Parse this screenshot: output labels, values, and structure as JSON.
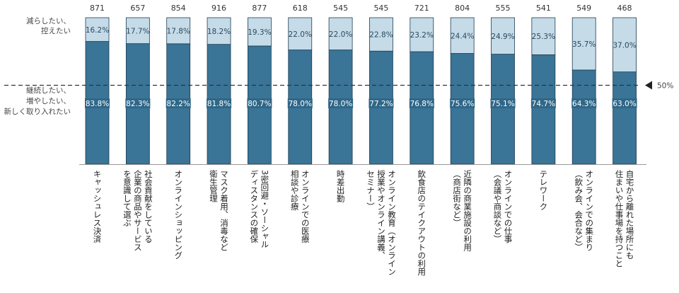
{
  "chart_data": {
    "type": "bar",
    "stacked": true,
    "orientation": "vertical",
    "ylim": [
      0,
      100
    ],
    "grid": false,
    "legend": "none",
    "colors": {
      "top": "#c5dbe8",
      "bottom": "#3a7496",
      "reference_line": "#333333"
    },
    "ylabels": {
      "top": [
        "減らしたい、",
        "控えたい"
      ],
      "bottom": [
        "継続したい、",
        "増やしたい、",
        "新しく取り入れたい"
      ]
    },
    "reference_line": {
      "value": 50,
      "label": "50%"
    },
    "counts": [
      871,
      657,
      854,
      916,
      877,
      618,
      545,
      545,
      721,
      804,
      555,
      541,
      549,
      468
    ],
    "categories": [
      [
        "キャッシュレス決済"
      ],
      [
        "社会貢献をしている",
        "企業の商品やサービス",
        "を意識して選ぶ"
      ],
      [
        "オンラインショッピング"
      ],
      [
        "マスク着用、消毒など",
        "衛生管理"
      ],
      [
        "3密回避・ソーシャル",
        "ディスタンスの確保"
      ],
      [
        "オンラインでの医療",
        "相談や診療"
      ],
      [
        "時差出勤"
      ],
      [
        "オンライン教育（オンライン",
        "授業やオンライン講義、",
        "セミナー）"
      ],
      [
        "飲食店のテイクアウトの利用"
      ],
      [
        "近隣の商業施設の利用",
        "（商店街など）"
      ],
      [
        "オンラインでの仕事",
        "（会議や商談など）"
      ],
      [
        "テレワーク"
      ],
      [
        "オンラインでの集まり",
        "（飲み会、会合など）"
      ],
      [
        "自宅から離れた場所にも",
        "住まいや仕事場を持つこと"
      ]
    ],
    "series": [
      {
        "values": [
          83.8,
          82.3,
          82.2,
          81.8,
          80.7,
          78.0,
          78.0,
          77.2,
          76.8,
          75.6,
          75.1,
          74.7,
          64.3,
          63.0
        ],
        "labels": [
          "83.8%",
          "82.3%",
          "82.2%",
          "81.8%",
          "80.7%",
          "78.0%",
          "78.0%",
          "77.2%",
          "76.8%",
          "75.6%",
          "75.1%",
          "74.7%",
          "64.3%",
          "63.0%"
        ]
      },
      {
        "values": [
          16.2,
          17.7,
          17.8,
          18.2,
          19.3,
          22.0,
          22.0,
          22.8,
          23.2,
          24.4,
          24.9,
          25.3,
          35.7,
          37.0
        ],
        "labels": [
          "16.2%",
          "17.7%",
          "17.8%",
          "18.2%",
          "19.3%",
          "22.0%",
          "22.0%",
          "22.8%",
          "23.2%",
          "24.4%",
          "24.9%",
          "25.3%",
          "35.7%",
          "37.0%"
        ]
      }
    ]
  }
}
